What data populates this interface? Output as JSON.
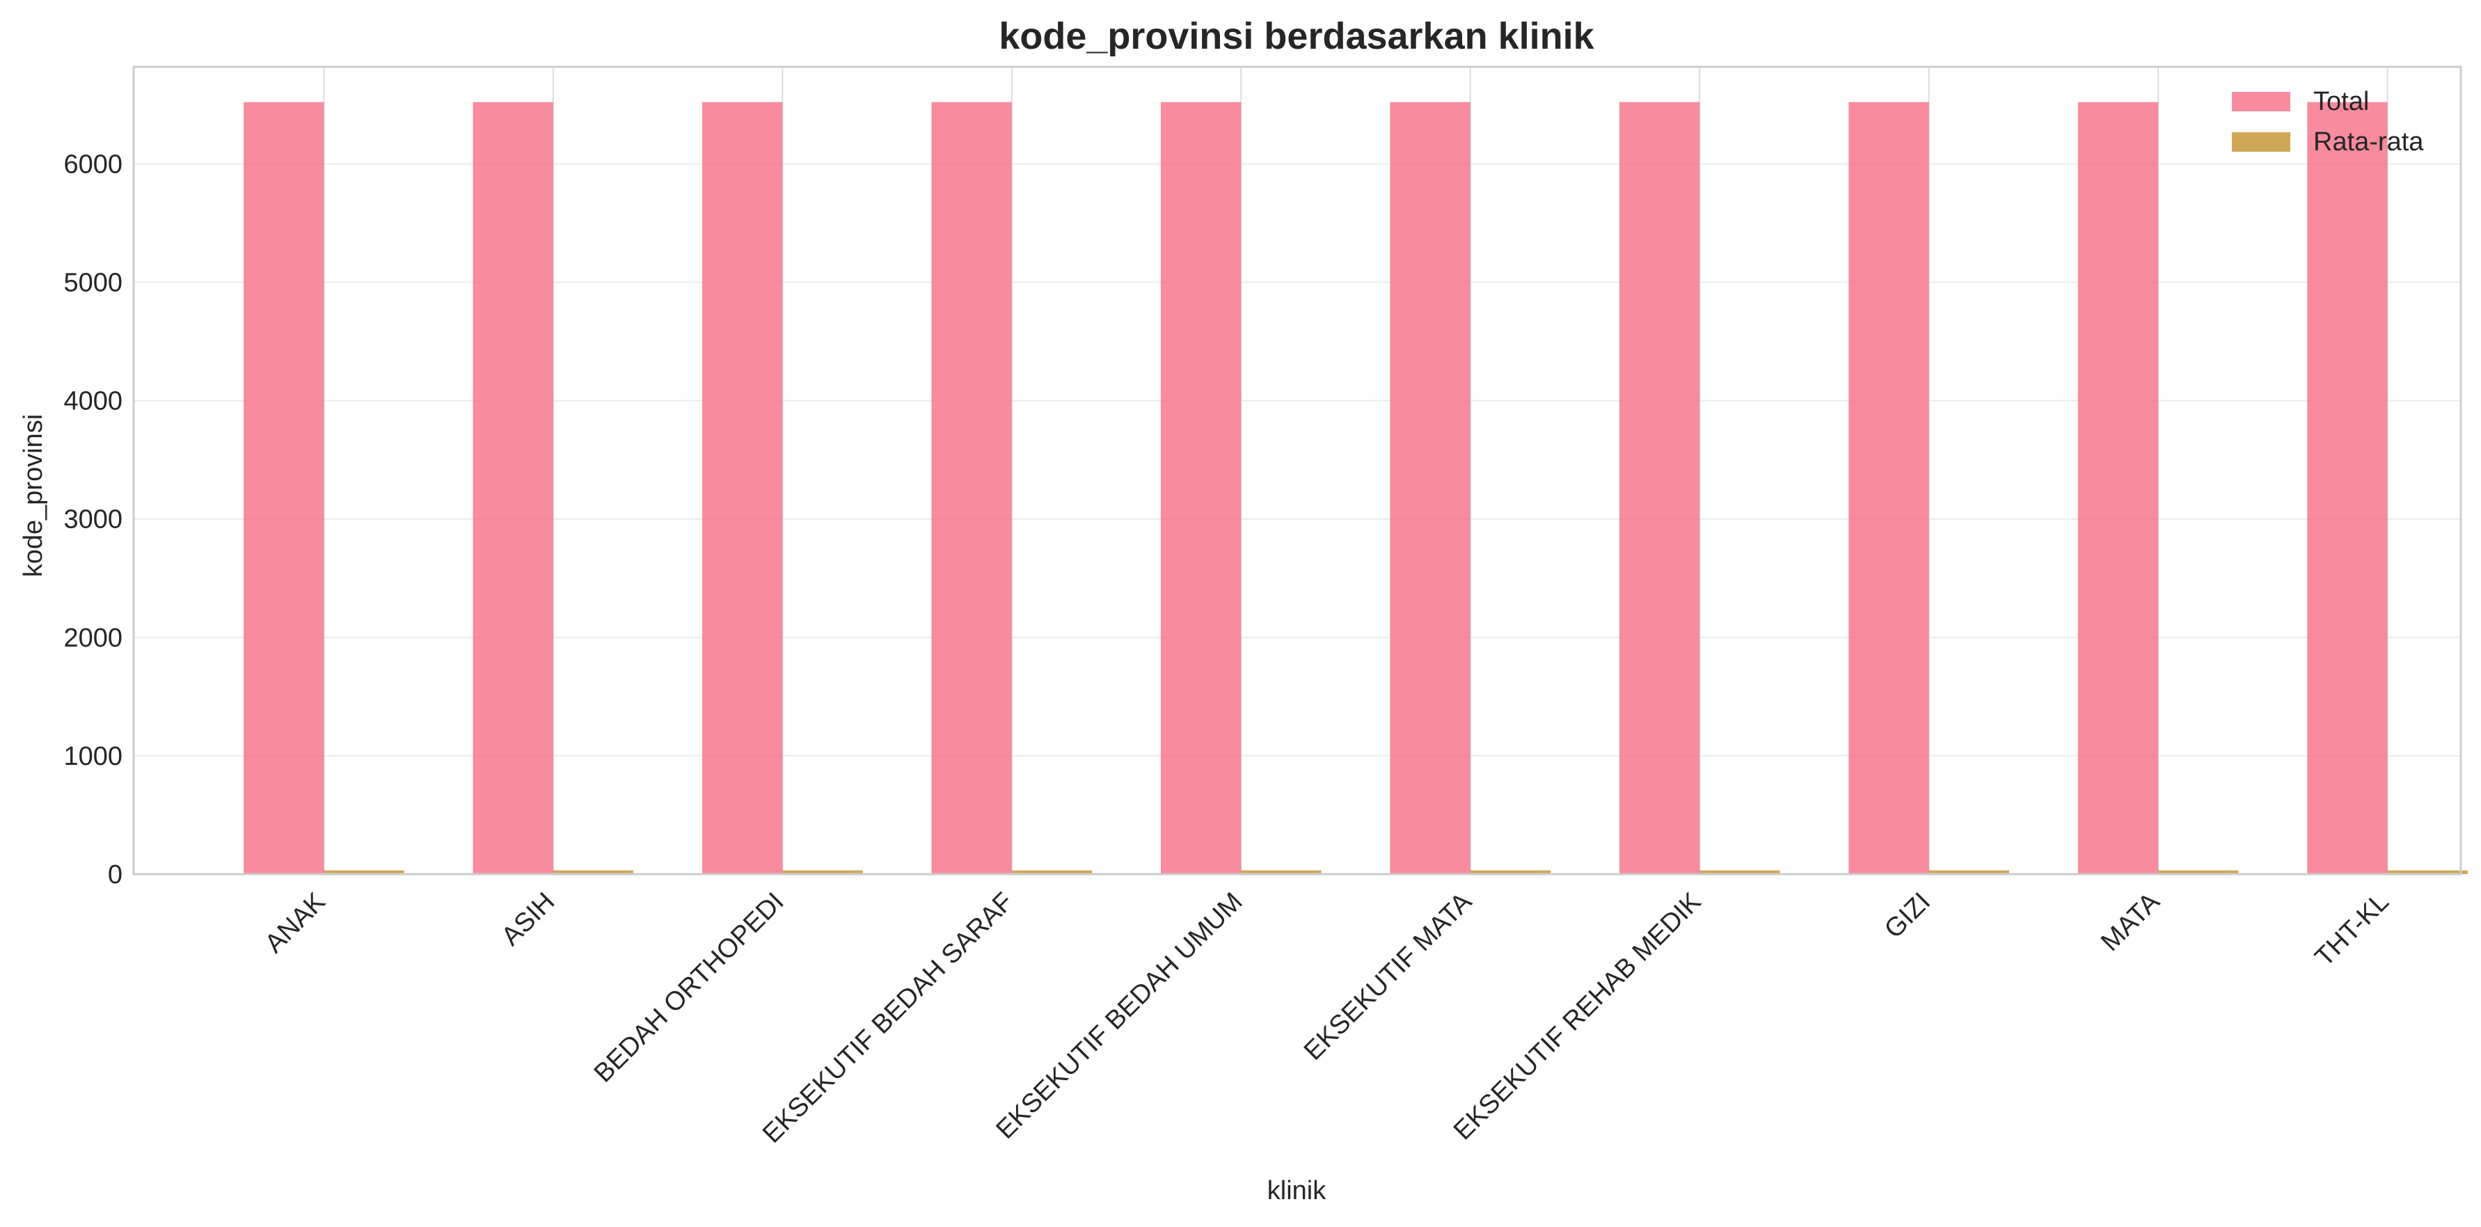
{
  "chart_data": {
    "type": "bar",
    "title": "kode_provinsi berdasarkan klinik",
    "xlabel": "klinik",
    "ylabel": "kode_provinsi",
    "categories": [
      "ANAK",
      "ASIH",
      "BEDAH ORTHOPEDI",
      "EKSEKUTIF BEDAH SARAF",
      "EKSEKUTIF BEDAH UMUM",
      "EKSEKUTIF MATA",
      "EKSEKUTIF REHAB MEDIK",
      "GIZI",
      "MATA",
      "THT-KL"
    ],
    "series": [
      {
        "name": "Total",
        "color": "#f77189",
        "values": [
          6522,
          6522,
          6522,
          6522,
          6522,
          6522,
          6522,
          6522,
          6522,
          6522
        ]
      },
      {
        "name": "Rata-rata",
        "color": "#c39532",
        "values": [
          32,
          32,
          32,
          32,
          32,
          32,
          32,
          32,
          32,
          32
        ]
      }
    ],
    "ylim": [
      0,
      6820
    ],
    "yticks": [
      0,
      1000,
      2000,
      3000,
      4000,
      5000,
      6000
    ],
    "grid": true,
    "legend_position": "top-right"
  }
}
